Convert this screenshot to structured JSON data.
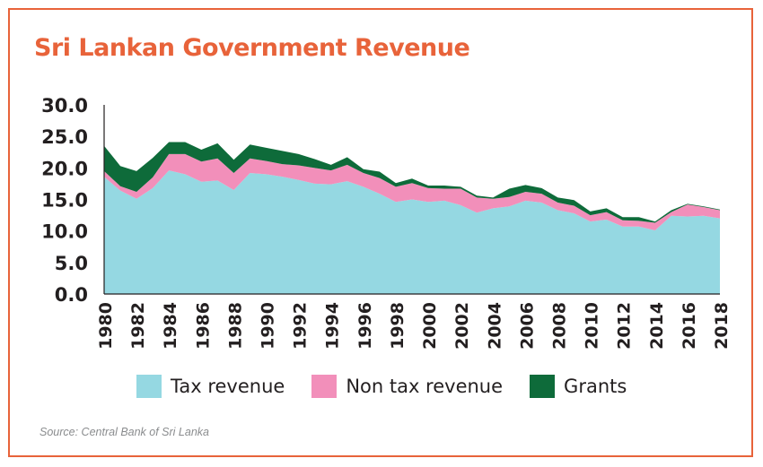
{
  "title": "Sri Lankan Government Revenue",
  "source": "Source: Central Bank of Sri Lanka",
  "colors": {
    "title": "#e8633a",
    "border": "#e8633a",
    "tax": "#95d8e2",
    "nontax": "#f28fba",
    "grants": "#0e6b3a",
    "axis": "#231f20"
  },
  "legend": [
    {
      "label": "Tax revenue",
      "color": "#95d8e2"
    },
    {
      "label": "Non tax revenue",
      "color": "#f28fba"
    },
    {
      "label": "Grants",
      "color": "#0e6b3a"
    }
  ],
  "chart_data": {
    "type": "area",
    "stacked": true,
    "x": [
      1980,
      1981,
      1982,
      1983,
      1984,
      1985,
      1986,
      1987,
      1988,
      1989,
      1990,
      1991,
      1992,
      1993,
      1994,
      1995,
      1996,
      1997,
      1998,
      1999,
      2000,
      2001,
      2002,
      2003,
      2004,
      2005,
      2006,
      2007,
      2008,
      2009,
      2010,
      2011,
      2012,
      2013,
      2014,
      2015,
      2016,
      2017,
      2018
    ],
    "x_ticks": [
      "1980",
      "1982",
      "1984",
      "1986",
      "1988",
      "1990",
      "1992",
      "1994",
      "1996",
      "1998",
      "2000",
      "2002",
      "2004",
      "2006",
      "2008",
      "2010",
      "2012",
      "2014",
      "2016",
      "2018"
    ],
    "y_ticks": [
      "0.0",
      "5.0",
      "10.0",
      "15.0",
      "20.0",
      "25.0",
      "30.0"
    ],
    "ylim": [
      0,
      30
    ],
    "series": [
      {
        "name": "Tax revenue",
        "values": [
          18.6,
          16.4,
          15.1,
          16.8,
          19.6,
          19.0,
          17.8,
          18.0,
          16.5,
          19.2,
          19.0,
          18.6,
          18.1,
          17.5,
          17.4,
          17.9,
          17.0,
          15.9,
          14.6,
          15.0,
          14.6,
          14.8,
          14.1,
          12.9,
          13.6,
          13.9,
          14.8,
          14.5,
          13.3,
          12.8,
          11.5,
          11.8,
          10.7,
          10.7,
          10.1,
          12.4,
          12.3,
          12.4,
          12.0
        ]
      },
      {
        "name": "Non tax revenue",
        "values": [
          0.9,
          0.7,
          1.1,
          1.7,
          2.6,
          3.2,
          3.2,
          3.5,
          2.7,
          2.3,
          2.1,
          2.0,
          2.3,
          2.5,
          2.2,
          2.6,
          2.2,
          2.5,
          2.4,
          2.6,
          2.2,
          1.9,
          2.6,
          2.4,
          1.5,
          1.5,
          1.4,
          1.4,
          1.2,
          1.2,
          1.0,
          1.2,
          1.0,
          0.9,
          1.2,
          0.6,
          1.9,
          1.4,
          1.3
        ]
      },
      {
        "name": "Grants",
        "values": [
          4.0,
          3.2,
          3.3,
          3.1,
          1.9,
          1.9,
          1.9,
          2.4,
          2.1,
          2.2,
          2.1,
          2.1,
          1.8,
          1.4,
          0.9,
          1.2,
          0.6,
          1.0,
          0.6,
          0.7,
          0.4,
          0.5,
          0.3,
          0.3,
          0.2,
          1.3,
          1.1,
          0.9,
          0.8,
          0.9,
          0.6,
          0.6,
          0.5,
          0.6,
          0.2,
          0.3,
          0.1,
          0.1,
          0.1
        ]
      }
    ],
    "legend_position": "bottom",
    "grid": false
  }
}
